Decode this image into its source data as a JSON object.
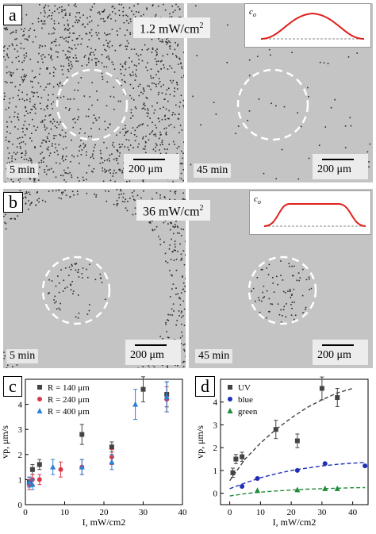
{
  "panel_a": {
    "label": "a",
    "intensity": "1.2 mW/cm",
    "intensity_exp": "2",
    "inset_label": "c",
    "inset_sub": "o",
    "left": {
      "time": "5 min",
      "scale": "200 μm"
    },
    "right": {
      "time": "45 min",
      "scale": "200 μm"
    }
  },
  "panel_b": {
    "label": "b",
    "intensity": "36 mW/cm",
    "intensity_exp": "2",
    "inset_label": "c",
    "inset_sub": "o",
    "left": {
      "time": "5 min",
      "scale": "200 μm"
    },
    "right": {
      "time": "45 min",
      "scale": "200 μm"
    }
  },
  "chart_data": [
    {
      "panel": "c",
      "type": "scatter",
      "xlabel": "I, mW/cm2",
      "ylabel": "vp, μm/s",
      "xlim": [
        0,
        40
      ],
      "ylim": [
        0,
        5
      ],
      "xticks": [
        "0",
        "10",
        "20",
        "30",
        "40"
      ],
      "yticks": [
        "0",
        "1",
        "2",
        "3",
        "4",
        "5"
      ],
      "legend_position": "top-left",
      "series": [
        {
          "name": "R = 140 μm",
          "color": "#444444",
          "marker": "square",
          "x": [
            1,
            1.8,
            3.6,
            14.4,
            22,
            30,
            36
          ],
          "y": [
            0.9,
            1.4,
            1.6,
            2.8,
            2.3,
            4.6,
            4.4
          ],
          "err": [
            0.2,
            0.2,
            0.2,
            0.4,
            0.2,
            0.5,
            0.5
          ]
        },
        {
          "name": "R = 240 μm",
          "color": "#d8384a",
          "marker": "circle",
          "x": [
            1,
            1.8,
            3.6,
            9,
            14.4,
            22,
            36
          ],
          "y": [
            0.8,
            1.0,
            1.0,
            1.4,
            1.5,
            1.9,
            4.2
          ],
          "err": [
            0.2,
            0.2,
            0.2,
            0.3,
            0.3,
            0.3,
            0.5
          ]
        },
        {
          "name": "R = 400 μm",
          "color": "#2f7fd6",
          "marker": "triangle",
          "x": [
            1,
            1.8,
            7,
            14.4,
            22,
            28,
            36
          ],
          "y": [
            0.9,
            0.8,
            1.5,
            1.5,
            1.7,
            4.0,
            4.3
          ],
          "err": [
            0.2,
            0.2,
            0.3,
            0.3,
            0.3,
            0.6,
            0.6
          ]
        }
      ]
    },
    {
      "panel": "d",
      "type": "scatter",
      "xlabel": "I, mW/cm2",
      "ylabel": "vp, μm/s",
      "xlim": [
        -3,
        45
      ],
      "ylim": [
        -0.5,
        5
      ],
      "xticks": [
        "0",
        "10",
        "20",
        "30",
        "40"
      ],
      "yticks": [
        "0",
        "1",
        "2",
        "3",
        "4"
      ],
      "legend_position": "top-left",
      "series": [
        {
          "name": "UV",
          "color": "#444444",
          "marker": "square",
          "x": [
            1,
            2,
            4,
            15,
            22,
            30,
            35
          ],
          "y": [
            0.9,
            1.5,
            1.6,
            2.8,
            2.3,
            4.6,
            4.2
          ],
          "err": [
            0.2,
            0.2,
            0.2,
            0.4,
            0.3,
            0.5,
            0.4
          ],
          "fit": {
            "x": [
              0,
              5,
              10,
              15,
              20,
              25,
              30,
              35,
              40
            ],
            "y": [
              0.55,
              1.5,
              2.2,
              2.8,
              3.3,
              3.75,
              4.1,
              4.4,
              4.6
            ]
          }
        },
        {
          "name": "blue",
          "color": "#1f2fb8",
          "marker": "circle",
          "x": [
            4,
            9,
            22,
            31,
            44
          ],
          "y": [
            0.3,
            0.65,
            1.0,
            1.3,
            1.2
          ],
          "err": [
            0,
            0,
            0,
            0,
            0
          ],
          "fit": {
            "x": [
              0,
              5,
              10,
              15,
              20,
              25,
              30,
              35,
              40,
              44
            ],
            "y": [
              0.2,
              0.45,
              0.68,
              0.85,
              1.0,
              1.1,
              1.2,
              1.27,
              1.32,
              1.35
            ]
          }
        },
        {
          "name": "green",
          "color": "#1f8a3a",
          "marker": "triangle",
          "x": [
            9,
            22,
            31,
            35
          ],
          "y": [
            0.12,
            0.15,
            0.2,
            0.2
          ],
          "err": [
            0,
            0,
            0,
            0
          ],
          "fit": {
            "x": [
              0,
              5,
              10,
              15,
              20,
              25,
              30,
              35,
              40,
              44
            ],
            "y": [
              -0.12,
              -0.02,
              0.05,
              0.1,
              0.14,
              0.18,
              0.2,
              0.22,
              0.24,
              0.25
            ]
          }
        }
      ]
    }
  ],
  "panel_c_label": "c",
  "panel_d_label": "d"
}
